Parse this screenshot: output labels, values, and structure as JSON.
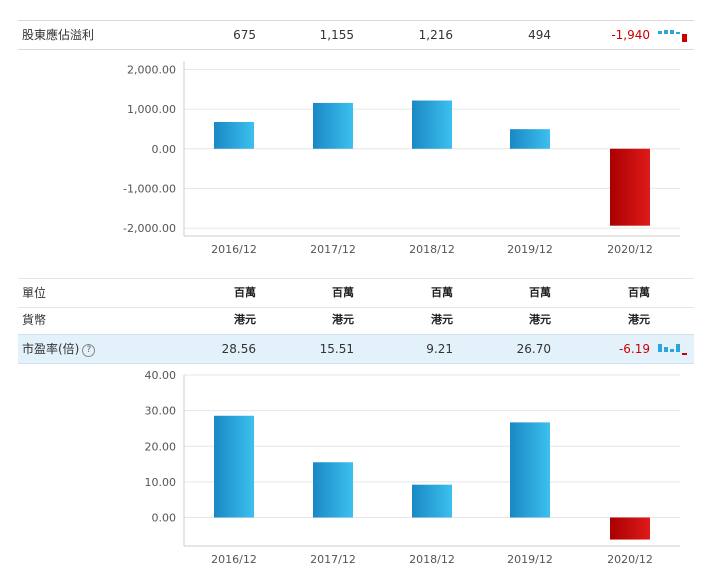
{
  "colors": {
    "positive": "#2aa6dc",
    "negative": "#cc0000"
  },
  "rows": {
    "eps": {
      "label": "股東應佔溢利",
      "values": [
        "675",
        "1,155",
        "1,216",
        "494",
        "-1,940"
      ]
    },
    "unit": {
      "label": "單位",
      "values": [
        "百萬",
        "百萬",
        "百萬",
        "百萬",
        "百萬"
      ]
    },
    "currency": {
      "label": "貨幣",
      "values": [
        "港元",
        "港元",
        "港元",
        "港元",
        "港元"
      ]
    },
    "pe": {
      "label": "市盈率(倍)",
      "values": [
        "28.56",
        "15.51",
        "9.21",
        "26.70",
        "-6.19"
      ]
    }
  },
  "chart_data": [
    {
      "type": "bar",
      "categories": [
        "2016/12",
        "2017/12",
        "2018/12",
        "2019/12",
        "2020/12"
      ],
      "values": [
        675,
        1155,
        1216,
        494,
        -1940
      ],
      "yticks": [
        "2,000.00",
        "1,000.00",
        "0.00",
        "-1,000.00",
        "-2,000.00"
      ],
      "ytick_values": [
        2000,
        1000,
        0,
        -1000,
        -2000
      ],
      "ylim": [
        -2200,
        2200
      ],
      "grid": true
    },
    {
      "type": "bar",
      "categories": [
        "2016/12",
        "2017/12",
        "2018/12",
        "2019/12",
        "2020/12"
      ],
      "values": [
        28.56,
        15.51,
        9.21,
        26.7,
        -6.19
      ],
      "yticks": [
        "40.00",
        "30.00",
        "20.00",
        "10.00",
        "0.00"
      ],
      "ytick_values": [
        40,
        30,
        20,
        10,
        0
      ],
      "ylim": [
        -8,
        40
      ],
      "grid": true
    }
  ]
}
